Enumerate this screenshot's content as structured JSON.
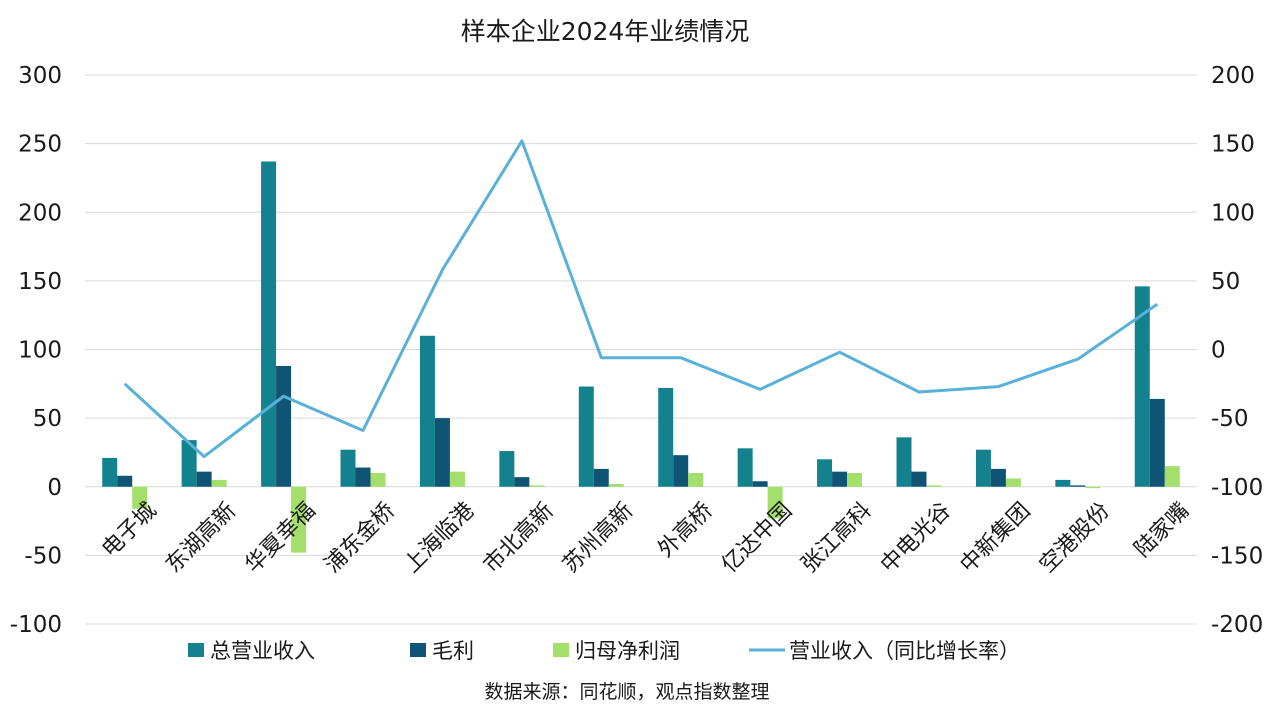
{
  "chart_data": {
    "type": "bar",
    "title": "样本企业2024年业绩情况",
    "source": "数据来源：同花顺，观点指数整理",
    "categories": [
      "电子城",
      "东湖高新",
      "华夏幸福",
      "浦东金桥",
      "上海临港",
      "市北高新",
      "苏州高新",
      "外高桥",
      "亿达中国",
      "张江高科",
      "中电光谷",
      "中新集团",
      "空港股份",
      "陆家嘴"
    ],
    "y_left": {
      "min": -100,
      "max": 300,
      "step": 50,
      "ticks": [
        "300",
        "250",
        "200",
        "150",
        "100",
        "50",
        "0",
        "-50",
        "-100"
      ]
    },
    "y_right": {
      "min": -200,
      "max": 200,
      "step": 50,
      "ticks": [
        "200",
        "150",
        "100",
        "50",
        "0",
        "-50",
        "-100",
        "-150",
        "-200"
      ]
    },
    "grid": true,
    "legend_position": "bottom",
    "series": [
      {
        "name": "总营业收入",
        "type": "bar",
        "axis": "left",
        "color": "#14818f",
        "values": [
          21,
          34,
          237,
          27,
          110,
          26,
          73,
          72,
          28,
          20,
          36,
          27,
          5,
          146
        ]
      },
      {
        "name": "毛利",
        "type": "bar",
        "axis": "left",
        "color": "#0f5474",
        "values": [
          8,
          11,
          88,
          14,
          50,
          7,
          13,
          23,
          4,
          11,
          11,
          13,
          1,
          64
        ]
      },
      {
        "name": "归母净利润",
        "type": "bar",
        "axis": "left",
        "color": "#a4de6b",
        "values": [
          -16,
          5,
          -48,
          10,
          11,
          1,
          2,
          10,
          -23,
          10,
          1,
          6,
          -1,
          15
        ]
      },
      {
        "name": "营业收入（同比增长率）",
        "type": "line",
        "axis": "right",
        "color": "#5ab1d8",
        "values": [
          -25,
          -78,
          -34,
          -59,
          58,
          152,
          -6,
          -6,
          -29,
          -2,
          -31,
          -27,
          -7,
          33
        ]
      }
    ]
  }
}
